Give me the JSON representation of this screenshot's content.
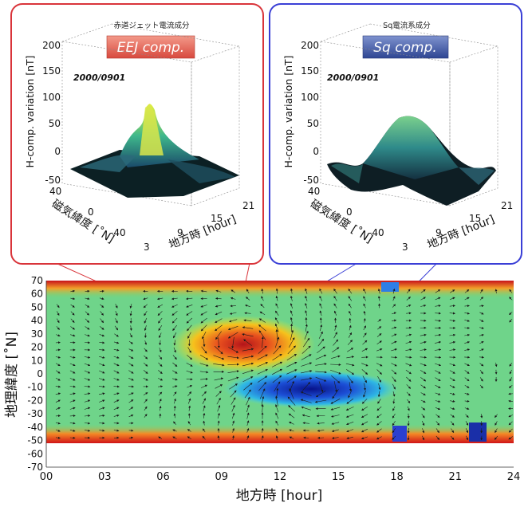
{
  "panels": [
    {
      "id": "eej",
      "caption": "赤道ジェット電流成分",
      "badge": "EEJ comp.",
      "date": "2000/0901",
      "zlabel": "H-comp. variation [nT]",
      "z_ticks": [
        "200",
        "150",
        "100",
        "50",
        "0",
        "-50"
      ],
      "lat_label": "磁気緯度 [˚N]",
      "lat_ticks": [
        "40",
        "0",
        "-40"
      ],
      "lt_label": "地方時 [hour]",
      "lt_ticks": [
        "3",
        "9",
        "15",
        "21"
      ],
      "frame_color": "#d9343a",
      "badge_color": "#e46a5e"
    },
    {
      "id": "sq",
      "caption": "Sq電流系成分",
      "badge": "Sq comp.",
      "date": "2000/0901",
      "zlabel": "H-comp. variation [nT]",
      "z_ticks": [
        "200",
        "150",
        "100",
        "50",
        "0",
        "-50"
      ],
      "lat_label": "磁気緯度 [˚N]",
      "lat_ticks": [
        "40",
        "0",
        "-40"
      ],
      "lt_label": "地方時 [hour]",
      "lt_ticks": [
        "3",
        "9",
        "15",
        "21"
      ],
      "frame_color": "#3a3fd6",
      "badge_color": "#3f57a8"
    }
  ],
  "chart_data": [
    {
      "type": "heatmap",
      "title": "",
      "xlabel": "地方時 [hour]",
      "ylabel": "地理緯度 [˚N]",
      "xlim": [
        0,
        24
      ],
      "ylim": [
        -70,
        70
      ],
      "x_ticks": [
        "00",
        "03",
        "06",
        "09",
        "12",
        "15",
        "18",
        "21",
        "24"
      ],
      "y_ticks": [
        "70",
        "60",
        "50",
        "40",
        "30",
        "20",
        "10",
        "0",
        "-10",
        "-20",
        "-30",
        "-40",
        "-50",
        "-60",
        "-70"
      ],
      "data_extent_lat": [
        -52,
        70
      ],
      "grid": false,
      "features": [
        {
          "kind": "positive-maximum",
          "local_time": 10.3,
          "latitude": 22
        },
        {
          "kind": "negative-minimum",
          "local_time": 13.5,
          "latitude": -10
        },
        {
          "kind": "positive-band",
          "latitude": 68
        },
        {
          "kind": "positive-band",
          "latitude": -50
        }
      ]
    },
    {
      "type": "surface",
      "panel": "eej",
      "x_axis": "地方時 [hour]",
      "y_axis": "磁気緯度 [˚N]",
      "zlim": [
        -50,
        200
      ],
      "peak": {
        "local_time": 11,
        "latitude": 0,
        "value": 110
      }
    },
    {
      "type": "surface",
      "panel": "sq",
      "x_axis": "地方時 [hour]",
      "y_axis": "磁気緯度 [˚N]",
      "zlim": [
        -50,
        200
      ],
      "peak": {
        "local_time": 11,
        "latitude": 20,
        "value": 80
      }
    }
  ]
}
